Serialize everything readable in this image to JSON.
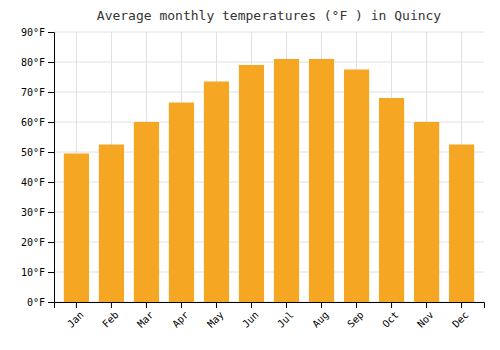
{
  "chart_data": {
    "type": "bar",
    "title": "Average monthly temperatures (°F ) in Quincy",
    "categories": [
      "Jan",
      "Feb",
      "Mar",
      "Apr",
      "May",
      "Jun",
      "Jul",
      "Aug",
      "Sep",
      "Oct",
      "Nov",
      "Dec"
    ],
    "values": [
      49.5,
      52.5,
      60.0,
      66.5,
      73.5,
      79.0,
      81.0,
      81.0,
      77.5,
      68.0,
      60.0,
      52.5
    ],
    "color": "#F5A623",
    "ylim": [
      0,
      90
    ],
    "yticks": [
      {
        "value": 0,
        "label": "0°F"
      },
      {
        "value": 10,
        "label": "10°F"
      },
      {
        "value": 20,
        "label": "20°F"
      },
      {
        "value": 30,
        "label": "30°F"
      },
      {
        "value": 40,
        "label": "40°F"
      },
      {
        "value": 50,
        "label": "50°F"
      },
      {
        "value": 60,
        "label": "60°F"
      },
      {
        "value": 70,
        "label": "70°F"
      },
      {
        "value": 80,
        "label": "80°F"
      },
      {
        "value": 90,
        "label": "90°F"
      }
    ],
    "grid": true
  }
}
